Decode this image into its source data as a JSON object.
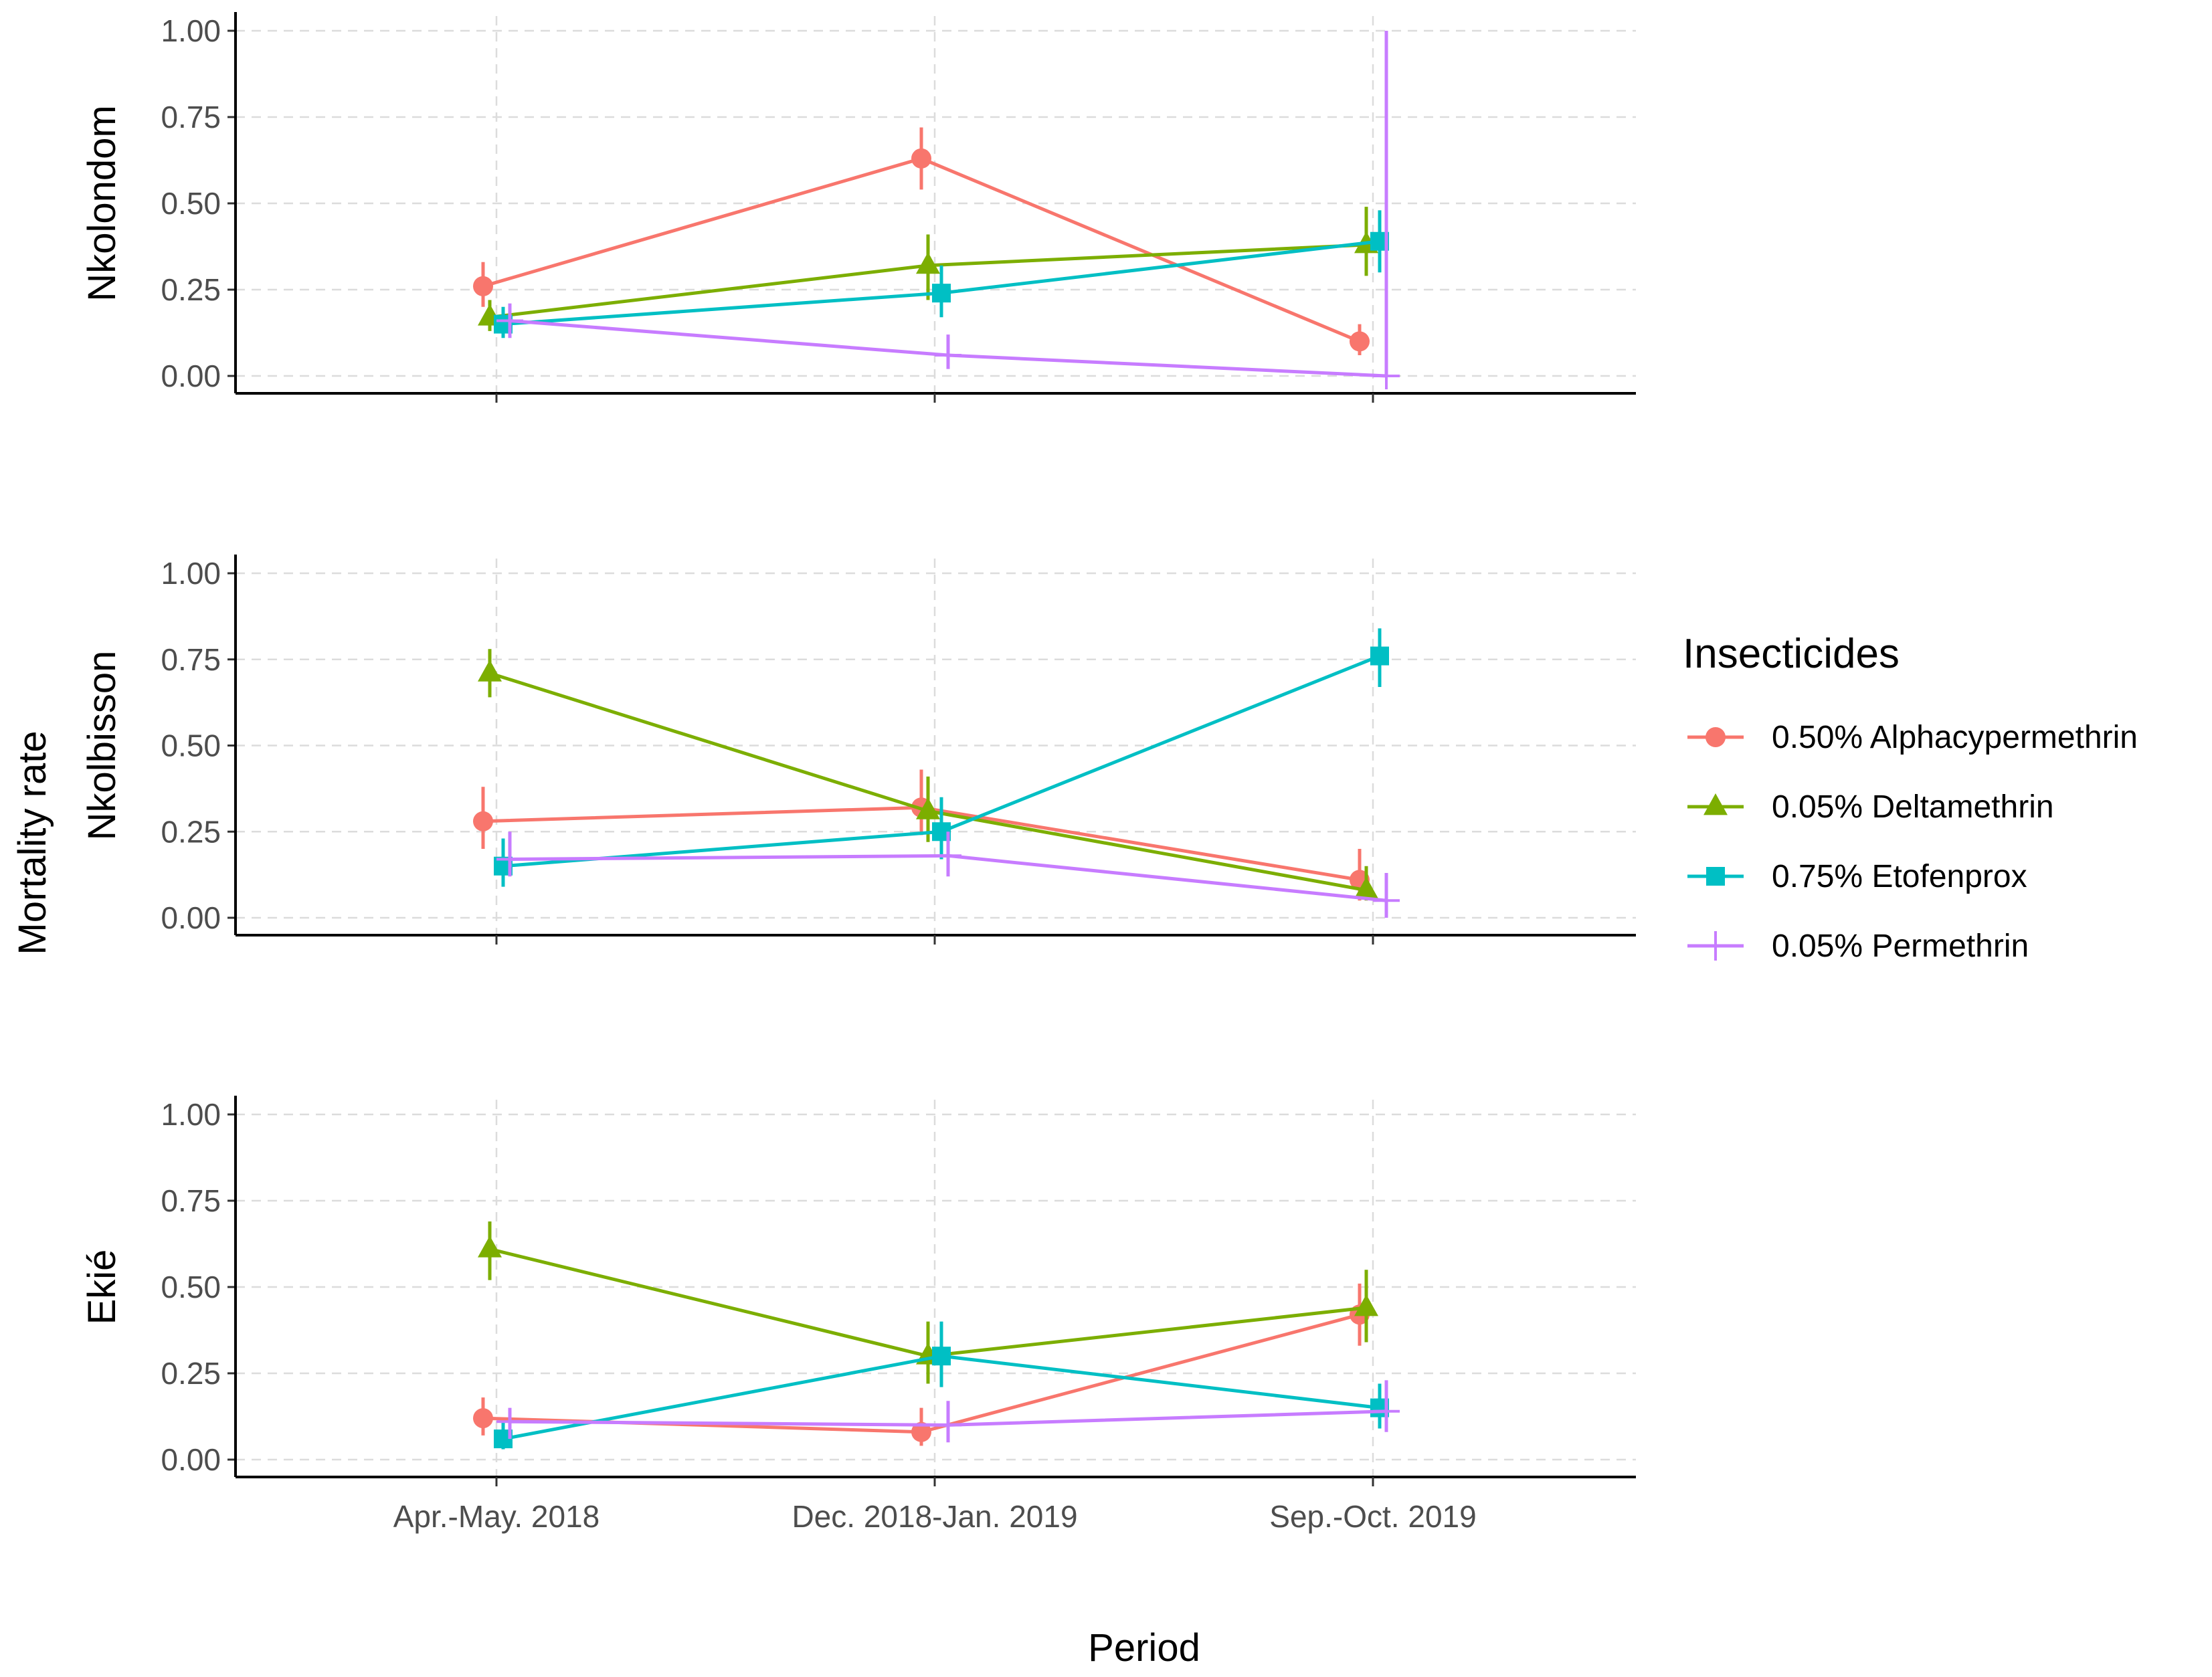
{
  "chart_data": {
    "type": "line",
    "xlabel": "Period",
    "ylabel": "Mortality rate",
    "categories": [
      "Apr.-May. 2018",
      "Dec. 2018-Jan. 2019",
      "Sep.-Oct. 2019"
    ],
    "ylim": [
      0,
      1
    ],
    "yticks": [
      "0.00",
      "0.25",
      "0.50",
      "0.75",
      "1.00"
    ],
    "grid": true,
    "legend": {
      "title": "Insecticides",
      "placement": "right",
      "entries": [
        "0.50% Alphacypermethrin",
        "0.05% Deltamethrin",
        "0.75% Etofenprox",
        "0.05% Permethrin"
      ]
    },
    "series_styles": [
      {
        "color": "#F8766D",
        "shape": "circle"
      },
      {
        "color": "#7CAE00",
        "shape": "triangle"
      },
      {
        "color": "#00BFC4",
        "shape": "square"
      },
      {
        "color": "#C77CFF",
        "shape": "plus"
      }
    ],
    "facets": [
      {
        "label": "Nkolondom",
        "series": [
          {
            "values": [
              0.26,
              0.63,
              0.1
            ],
            "lower": [
              0.2,
              0.54,
              0.06
            ],
            "upper": [
              0.33,
              0.72,
              0.15
            ]
          },
          {
            "values": [
              0.17,
              0.32,
              0.38
            ],
            "lower": [
              0.13,
              0.22,
              0.29
            ],
            "upper": [
              0.22,
              0.41,
              0.49
            ]
          },
          {
            "values": [
              0.15,
              0.24,
              0.39
            ],
            "lower": [
              0.11,
              0.17,
              0.3
            ],
            "upper": [
              0.2,
              0.32,
              0.48
            ]
          },
          {
            "values": [
              0.16,
              0.06,
              0.0
            ],
            "lower": [
              0.11,
              0.02,
              0.0
            ],
            "upper": [
              0.21,
              0.12,
              1.0
            ]
          }
        ]
      },
      {
        "label": "Nkolbisson",
        "series": [
          {
            "values": [
              0.28,
              0.32,
              0.11
            ],
            "lower": [
              0.2,
              0.24,
              0.05
            ],
            "upper": [
              0.38,
              0.43,
              0.2
            ]
          },
          {
            "values": [
              0.71,
              0.31,
              0.08
            ],
            "lower": [
              0.64,
              0.22,
              0.05
            ],
            "upper": [
              0.78,
              0.41,
              0.15
            ]
          },
          {
            "values": [
              0.15,
              0.25,
              0.76
            ],
            "lower": [
              0.09,
              0.17,
              0.67
            ],
            "upper": [
              0.23,
              0.35,
              0.84
            ]
          },
          {
            "values": [
              0.17,
              0.18,
              0.05
            ],
            "lower": [
              0.12,
              0.12,
              0.0
            ],
            "upper": [
              0.25,
              0.25,
              0.13
            ]
          }
        ]
      },
      {
        "label": "Ekié",
        "series": [
          {
            "values": [
              0.12,
              0.08,
              0.42
            ],
            "lower": [
              0.07,
              0.04,
              0.33
            ],
            "upper": [
              0.18,
              0.15,
              0.51
            ]
          },
          {
            "values": [
              0.61,
              0.3,
              0.44
            ],
            "lower": [
              0.52,
              0.22,
              0.34
            ],
            "upper": [
              0.69,
              0.4,
              0.55
            ]
          },
          {
            "values": [
              0.06,
              0.3,
              0.15
            ],
            "lower": [
              0.03,
              0.21,
              0.09
            ],
            "upper": [
              0.11,
              0.4,
              0.22
            ]
          },
          {
            "values": [
              0.11,
              0.1,
              0.14
            ],
            "lower": [
              0.06,
              0.05,
              0.08
            ],
            "upper": [
              0.15,
              0.17,
              0.23
            ]
          }
        ]
      }
    ]
  }
}
